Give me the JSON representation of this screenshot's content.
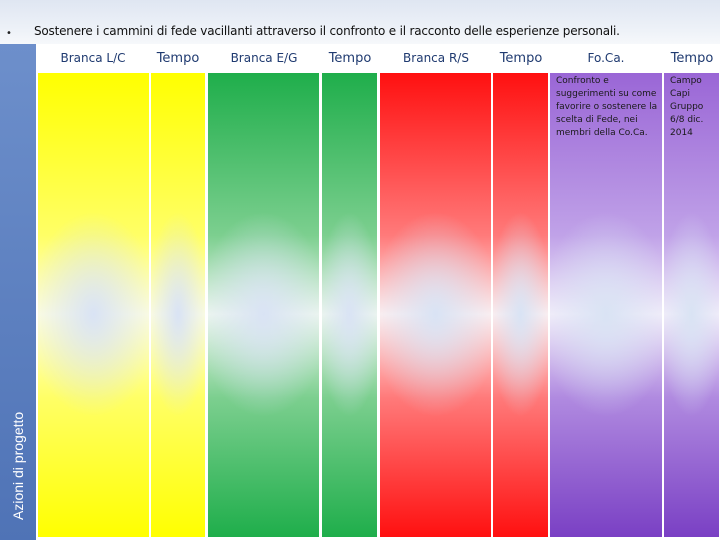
{
  "header": {
    "bullet": "•",
    "text": "Sostenere i cammini di fede vacillanti attraverso il confronto e il racconto delle esperienze personali."
  },
  "side": {
    "label": "Azioni di progetto"
  },
  "columns": [
    {
      "label": "Branca L/C"
    },
    {
      "label": "Tempo"
    },
    {
      "label": "Branca E/G"
    },
    {
      "label": "Tempo"
    },
    {
      "label": "Branca R/S"
    },
    {
      "label": "Tempo"
    },
    {
      "label": "Fo.Ca."
    },
    {
      "label": "Tempo"
    }
  ],
  "cells": {
    "foca_text": "Confronto e suggerimenti su come favorire o sostenere la scelta di Fede, nei membri della Co.Ca.",
    "foca_tempo_text": "Campo Capi Gruppo 6/8 dic. 2014"
  },
  "colors": {
    "yellow": "#ffff00",
    "green": "#1fae4b",
    "red": "#ff1010",
    "purple": "#8a52cf",
    "sidebar": "#4f73b6",
    "header_text": "#1f3a70"
  }
}
